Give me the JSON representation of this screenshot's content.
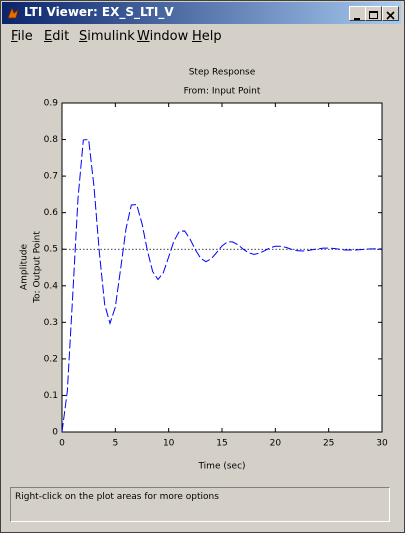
{
  "window": {
    "title": "LTI Viewer: EX_S_LTI_V",
    "menu": [
      "File",
      "Edit",
      "Simulink",
      "Window",
      "Help"
    ],
    "status": "Right-click on the plot areas for more options"
  },
  "chart_data": {
    "type": "line",
    "title": "Step Response",
    "subtitle": "From: Input Point",
    "xlabel": "Time (sec)",
    "ylabel": "Amplitude",
    "ylabel2": "To: Output Point",
    "x": [
      0,
      0.5,
      1,
      1.5,
      2,
      2.5,
      3,
      3.5,
      4,
      4.5,
      5,
      5.5,
      6,
      6.5,
      7,
      7.5,
      8,
      8.5,
      9,
      9.5,
      10,
      10.5,
      11,
      11.5,
      12,
      12.5,
      13,
      13.5,
      14,
      14.5,
      15,
      15.5,
      16,
      16.5,
      17,
      17.5,
      18,
      18.5,
      19,
      19.5,
      20,
      20.5,
      21,
      21.5,
      22,
      22.5,
      23,
      23.5,
      24,
      24.5,
      25,
      25.5,
      26,
      26.5,
      27,
      27.5,
      28,
      28.5,
      29,
      29.5,
      30
    ],
    "values": [
      0,
      0.112,
      0.371,
      0.639,
      0.799,
      0.8,
      0.671,
      0.492,
      0.349,
      0.297,
      0.342,
      0.447,
      0.556,
      0.621,
      0.622,
      0.57,
      0.497,
      0.439,
      0.417,
      0.436,
      0.479,
      0.523,
      0.549,
      0.55,
      0.528,
      0.499,
      0.475,
      0.466,
      0.474,
      0.491,
      0.509,
      0.52,
      0.52,
      0.512,
      0.5,
      0.49,
      0.486,
      0.489,
      0.496,
      0.504,
      0.508,
      0.508,
      0.505,
      0.5,
      0.496,
      0.495,
      0.496,
      0.499,
      0.501,
      0.503,
      0.503,
      0.502,
      0.5,
      0.498,
      0.498,
      0.498,
      0.499,
      0.5,
      0.501,
      0.501,
      0.501
    ],
    "color": "#0000ff",
    "line_style": "dashed",
    "hline": 0.5,
    "xlim": [
      0,
      30
    ],
    "xticks": [
      0,
      5,
      10,
      15,
      20,
      25,
      30
    ],
    "ylim": [
      0,
      0.9
    ],
    "yticks": [
      0,
      0.1,
      0.2,
      0.3,
      0.4,
      0.5,
      0.6,
      0.7,
      0.8,
      0.9
    ]
  }
}
